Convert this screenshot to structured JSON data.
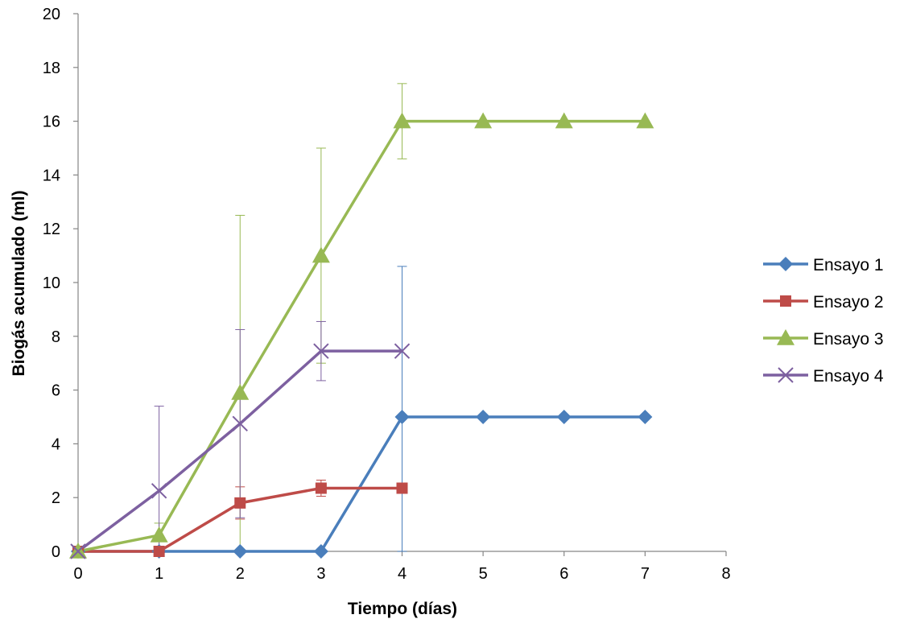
{
  "chart_data": {
    "type": "line",
    "xlabel": "Tiempo (días)",
    "ylabel": "Biogás acumulado (ml)",
    "xlim": [
      0,
      8
    ],
    "ylim": [
      0,
      20
    ],
    "xticks": [
      "0",
      "1",
      "2",
      "3",
      "4",
      "5",
      "6",
      "7",
      "8"
    ],
    "yticks": [
      "0",
      "2",
      "4",
      "6",
      "8",
      "10",
      "12",
      "14",
      "16",
      "18",
      "20"
    ],
    "grid": false,
    "legend_position": "right",
    "series": [
      {
        "name": "Ensayo 1",
        "color": "#4a7ebb",
        "marker": "diamond",
        "x": [
          0,
          1,
          2,
          3,
          4,
          5,
          6,
          7
        ],
        "values": [
          0,
          0,
          0,
          0,
          5,
          5,
          5,
          5
        ],
        "error": [
          null,
          null,
          null,
          null,
          5.6,
          null,
          null,
          null
        ]
      },
      {
        "name": "Ensayo 2",
        "color": "#be4b48",
        "marker": "square",
        "x": [
          0,
          1,
          2,
          3,
          4
        ],
        "values": [
          0,
          0,
          1.8,
          2.35,
          2.35
        ],
        "error": [
          null,
          null,
          0.6,
          0.3,
          null
        ]
      },
      {
        "name": "Ensayo 3",
        "color": "#98b954",
        "marker": "triangle",
        "x": [
          0,
          1,
          2,
          3,
          4,
          5,
          6,
          7
        ],
        "values": [
          0,
          0.6,
          5.9,
          11,
          16,
          16,
          16,
          16
        ],
        "error": [
          null,
          0.45,
          6.6,
          4.0,
          1.4,
          null,
          null,
          null
        ]
      },
      {
        "name": "Ensayo 4",
        "color": "#7d60a0",
        "marker": "x",
        "x": [
          0,
          1,
          2,
          3,
          4
        ],
        "values": [
          0,
          2.25,
          4.75,
          7.45,
          7.45
        ],
        "error": [
          null,
          3.15,
          3.5,
          1.1,
          null
        ]
      }
    ]
  }
}
